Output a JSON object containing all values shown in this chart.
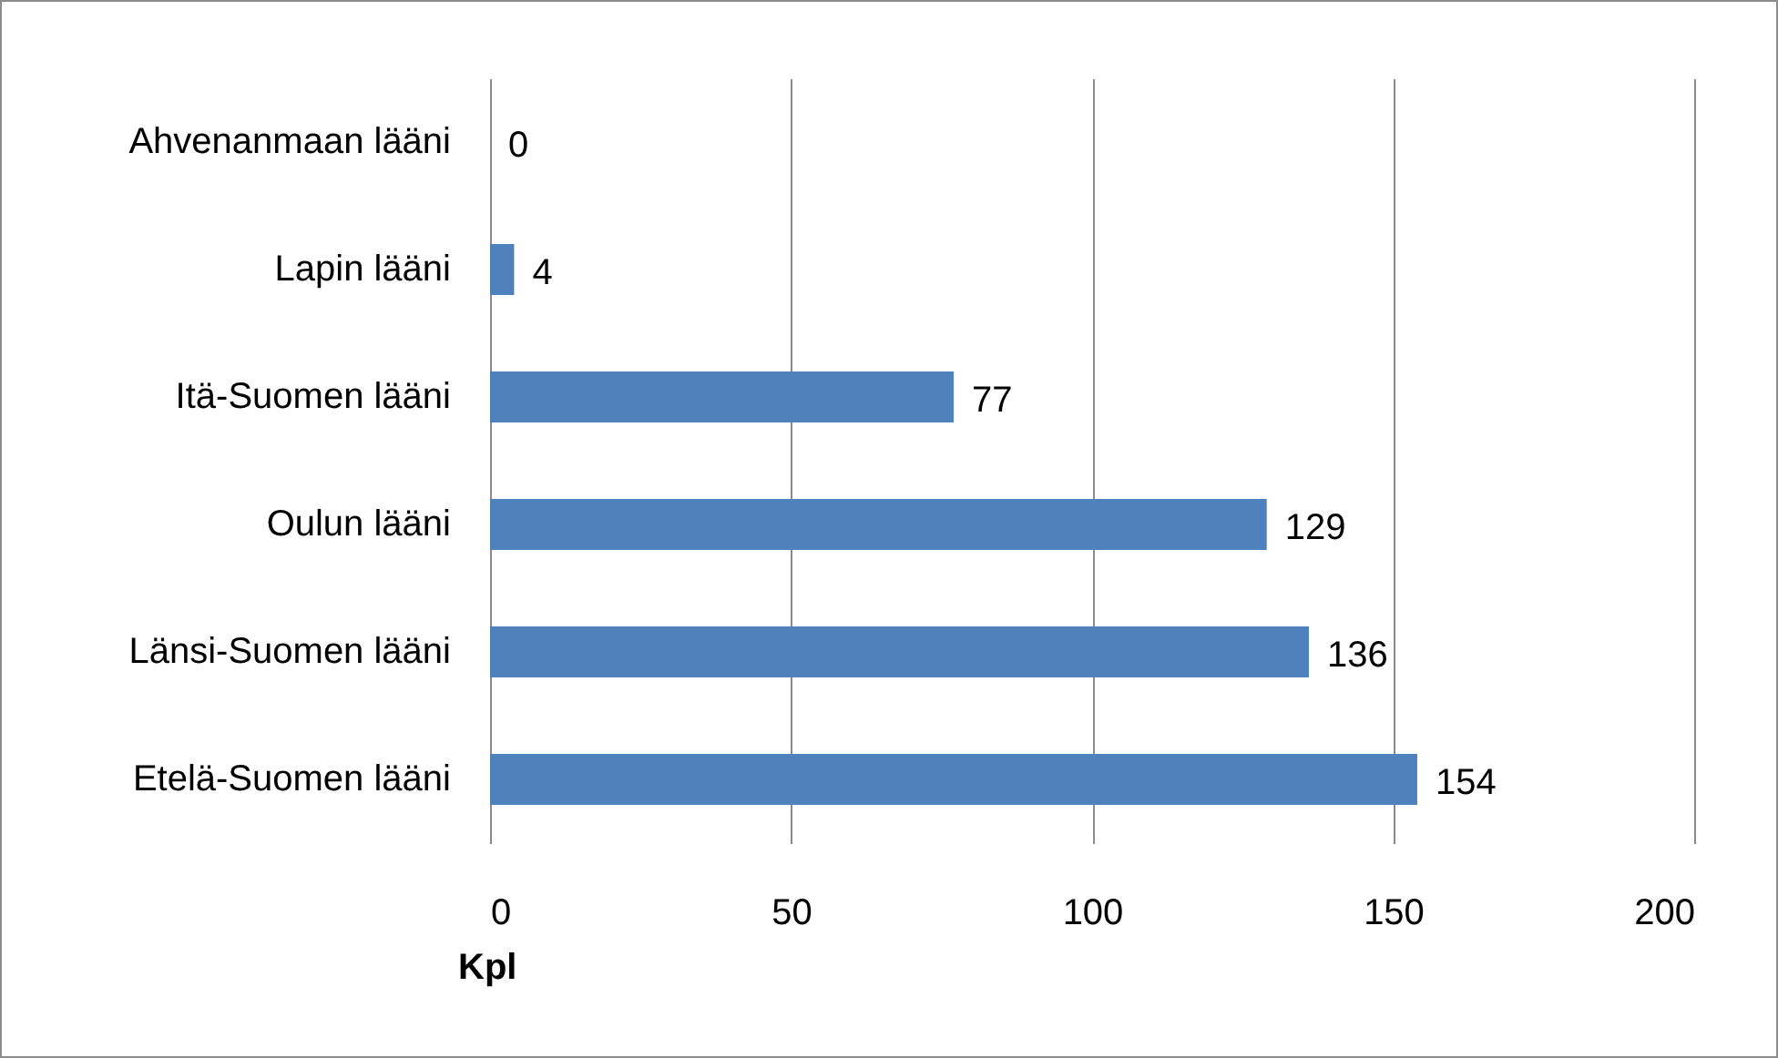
{
  "chart_data": {
    "type": "bar",
    "orientation": "horizontal",
    "categories": [
      "Ahvenanmaan lääni",
      "Lapin lääni",
      "Itä-Suomen lääni",
      "Oulun lääni",
      "Länsi-Suomen lääni",
      "Etelä-Suomen lääni"
    ],
    "values": [
      0,
      4,
      77,
      129,
      136,
      154
    ],
    "color": "#4f81bd",
    "xlabel": "Kpl",
    "xlim": [
      0,
      200
    ],
    "xticks": [
      0,
      50,
      100,
      150,
      200
    ],
    "grid": "x",
    "data_labels": true
  }
}
